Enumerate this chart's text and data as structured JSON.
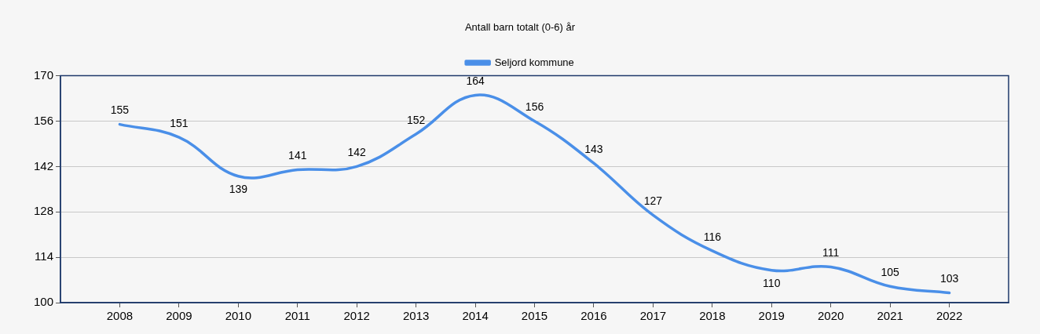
{
  "chart_data": {
    "type": "line",
    "title": "Antall barn totalt (0-6) år",
    "x": [
      2008,
      2009,
      2010,
      2011,
      2012,
      2013,
      2014,
      2015,
      2016,
      2017,
      2018,
      2019,
      2020,
      2021,
      2022
    ],
    "series": [
      {
        "name": "Seljord kommune",
        "color": "#4a8fe8",
        "values": [
          155,
          151,
          139,
          141,
          142,
          152,
          164,
          156,
          143,
          127,
          116,
          110,
          111,
          105,
          103
        ]
      }
    ],
    "xlim": [
      2007,
      2023
    ],
    "xticks": [
      2008,
      2009,
      2010,
      2011,
      2012,
      2013,
      2014,
      2015,
      2016,
      2017,
      2018,
      2019,
      2020,
      2021,
      2022
    ],
    "ylim": [
      100,
      170
    ],
    "yticks": [
      100,
      114,
      128,
      142,
      156,
      170
    ],
    "grid": "y",
    "legend": "top",
    "data_labels": true,
    "marker": "none",
    "line_style": "solid"
  }
}
